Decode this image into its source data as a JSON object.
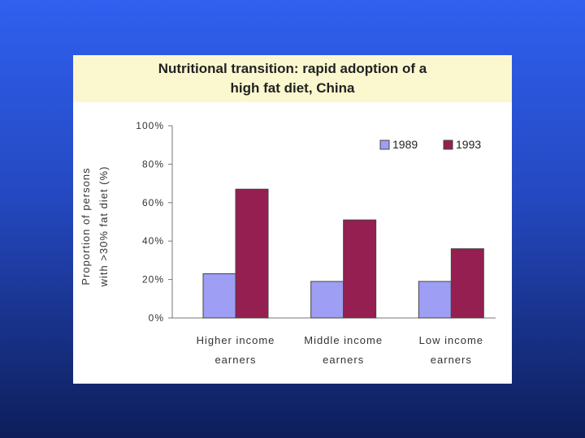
{
  "chart_data": {
    "type": "bar",
    "title": [
      "Nutritional transition: rapid adoption of a",
      "high fat diet, China"
    ],
    "ylabel": [
      "Proportion of persons",
      "with >30% fat diet (%)"
    ],
    "xlabel": "",
    "categories": [
      [
        "Higher income",
        "earners"
      ],
      [
        "Middle income",
        "earners"
      ],
      [
        "Low income",
        "earners"
      ]
    ],
    "series": [
      {
        "name": "1989",
        "color": "#9e9ef4",
        "values": [
          23,
          19,
          19
        ]
      },
      {
        "name": "1993",
        "color": "#951f50",
        "values": [
          67,
          51,
          36
        ]
      }
    ],
    "ylim": [
      0,
      100
    ],
    "yticks": [
      "0%",
      "20%",
      "40%",
      "60%",
      "80%",
      "100%"
    ],
    "grid": false,
    "legend": "top-right"
  }
}
